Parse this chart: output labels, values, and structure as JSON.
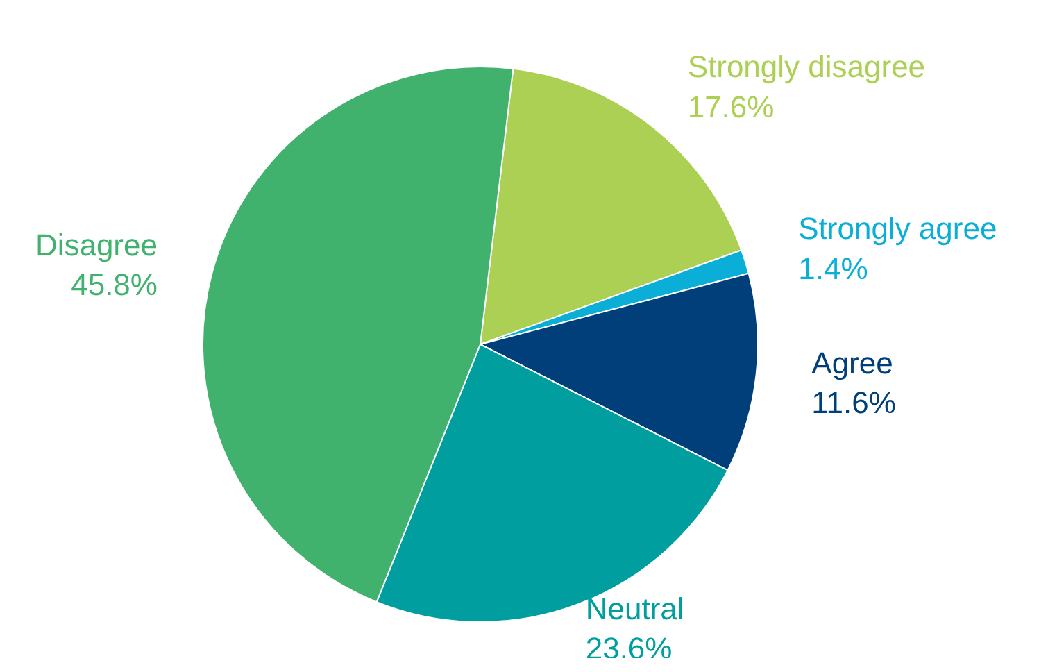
{
  "chart_data": {
    "type": "pie",
    "categories": [
      "Strongly disagree",
      "Strongly agree",
      "Agree",
      "Neutral",
      "Disagree"
    ],
    "values": [
      17.6,
      1.4,
      11.6,
      23.6,
      45.8
    ],
    "value_labels": [
      "17.6%",
      "1.4%",
      "11.6%",
      "23.6%",
      "45.8%"
    ],
    "colors": [
      "#acd053",
      "#0aaed6",
      "#003f7a",
      "#009e9e",
      "#41b26d"
    ]
  }
}
